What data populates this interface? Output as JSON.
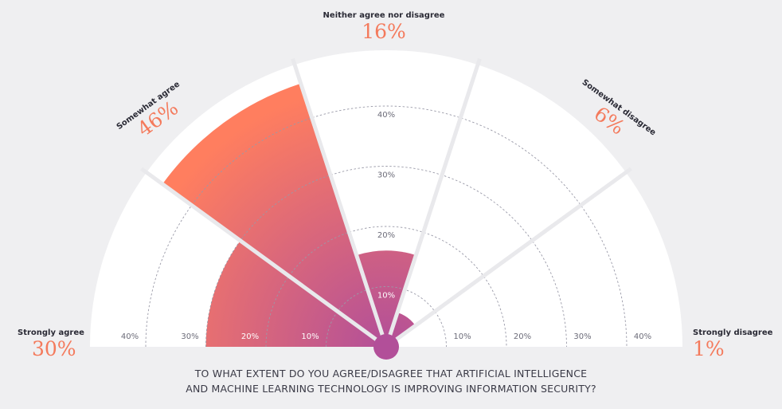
{
  "chart_data": {
    "type": "polar-bar",
    "question": [
      "TO WHAT EXTENT DO YOU AGREE/DISAGREE THAT ARTIFICIAL INTELLIGENCE",
      "AND MACHINE LEARNING TECHNOLOGY IS IMPROVING INFORMATION SECURITY?"
    ],
    "categories": [
      "Strongly agree",
      "Somewhat agree",
      "Neither agree nor disagree",
      "Somewhat disagree",
      "Strongly disagree"
    ],
    "values": [
      30,
      46,
      16,
      6,
      1
    ],
    "value_labels": [
      "30%",
      "46%",
      "16%",
      "6%",
      "1%"
    ],
    "radial_ticks": [
      10,
      20,
      30,
      40
    ],
    "tick_labels": [
      "10%",
      "20%",
      "30%",
      "40%"
    ],
    "center_tick_labels": [
      "10%",
      "20%",
      "30%",
      "40%"
    ],
    "rlim": [
      0,
      48
    ],
    "grid": true,
    "colors": {
      "bar_outer": "#ff7e5f",
      "bar_inner": "#b24f99",
      "center": "#b24f99",
      "sector_bg": "#ffffff",
      "background": "#efeff1",
      "accent_text": "#f47a5c"
    }
  }
}
